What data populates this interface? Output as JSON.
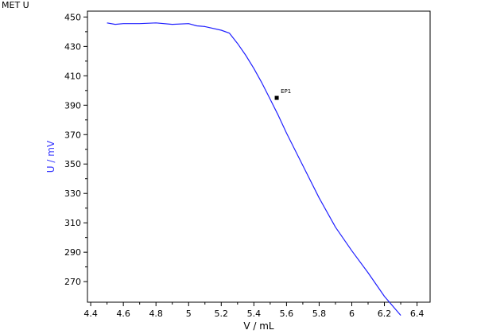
{
  "chart_data": {
    "type": "line",
    "title": "MET U",
    "xlabel": "V / mL",
    "ylabel": "U / mV",
    "xlim": [
      4.38,
      6.48
    ],
    "ylim": [
      256,
      454
    ],
    "x_ticks": [
      4.4,
      4.6,
      4.8,
      5,
      5.2,
      5.4,
      5.6,
      5.8,
      6,
      6.2,
      6.4
    ],
    "x_tick_labels": [
      "4.4",
      "4.6",
      "4.8",
      "5",
      "5.2",
      "5.4",
      "5.6",
      "5.8",
      "6",
      "6.2",
      "6.4"
    ],
    "y_ticks": [
      270,
      290,
      310,
      330,
      350,
      370,
      390,
      410,
      430,
      450
    ],
    "y_tick_labels": [
      "270",
      "290",
      "310",
      "330",
      "350",
      "370",
      "390",
      "410",
      "430",
      "450"
    ],
    "grid": false,
    "series": [
      {
        "x": [
          4.5,
          4.55,
          4.6,
          4.7,
          4.8,
          4.9,
          5.0,
          5.05,
          5.1,
          5.2,
          5.25,
          5.3,
          5.35,
          5.4,
          5.45,
          5.5,
          5.55,
          5.6,
          5.7,
          5.8,
          5.9,
          6.0,
          6.1,
          6.2,
          6.3
        ],
        "y": [
          446,
          445,
          445.5,
          445.5,
          446,
          445,
          445.5,
          444,
          443.5,
          441,
          439,
          432,
          424,
          415,
          405,
          394,
          383,
          371,
          349,
          327,
          307,
          291,
          276,
          260,
          247
        ]
      }
    ],
    "marker_color": "#000000",
    "line_color": "#2020ff",
    "ylabel_color": "#3333ff",
    "annotations": [
      {
        "label": "EP1",
        "x": 5.54,
        "y": 395
      }
    ]
  }
}
